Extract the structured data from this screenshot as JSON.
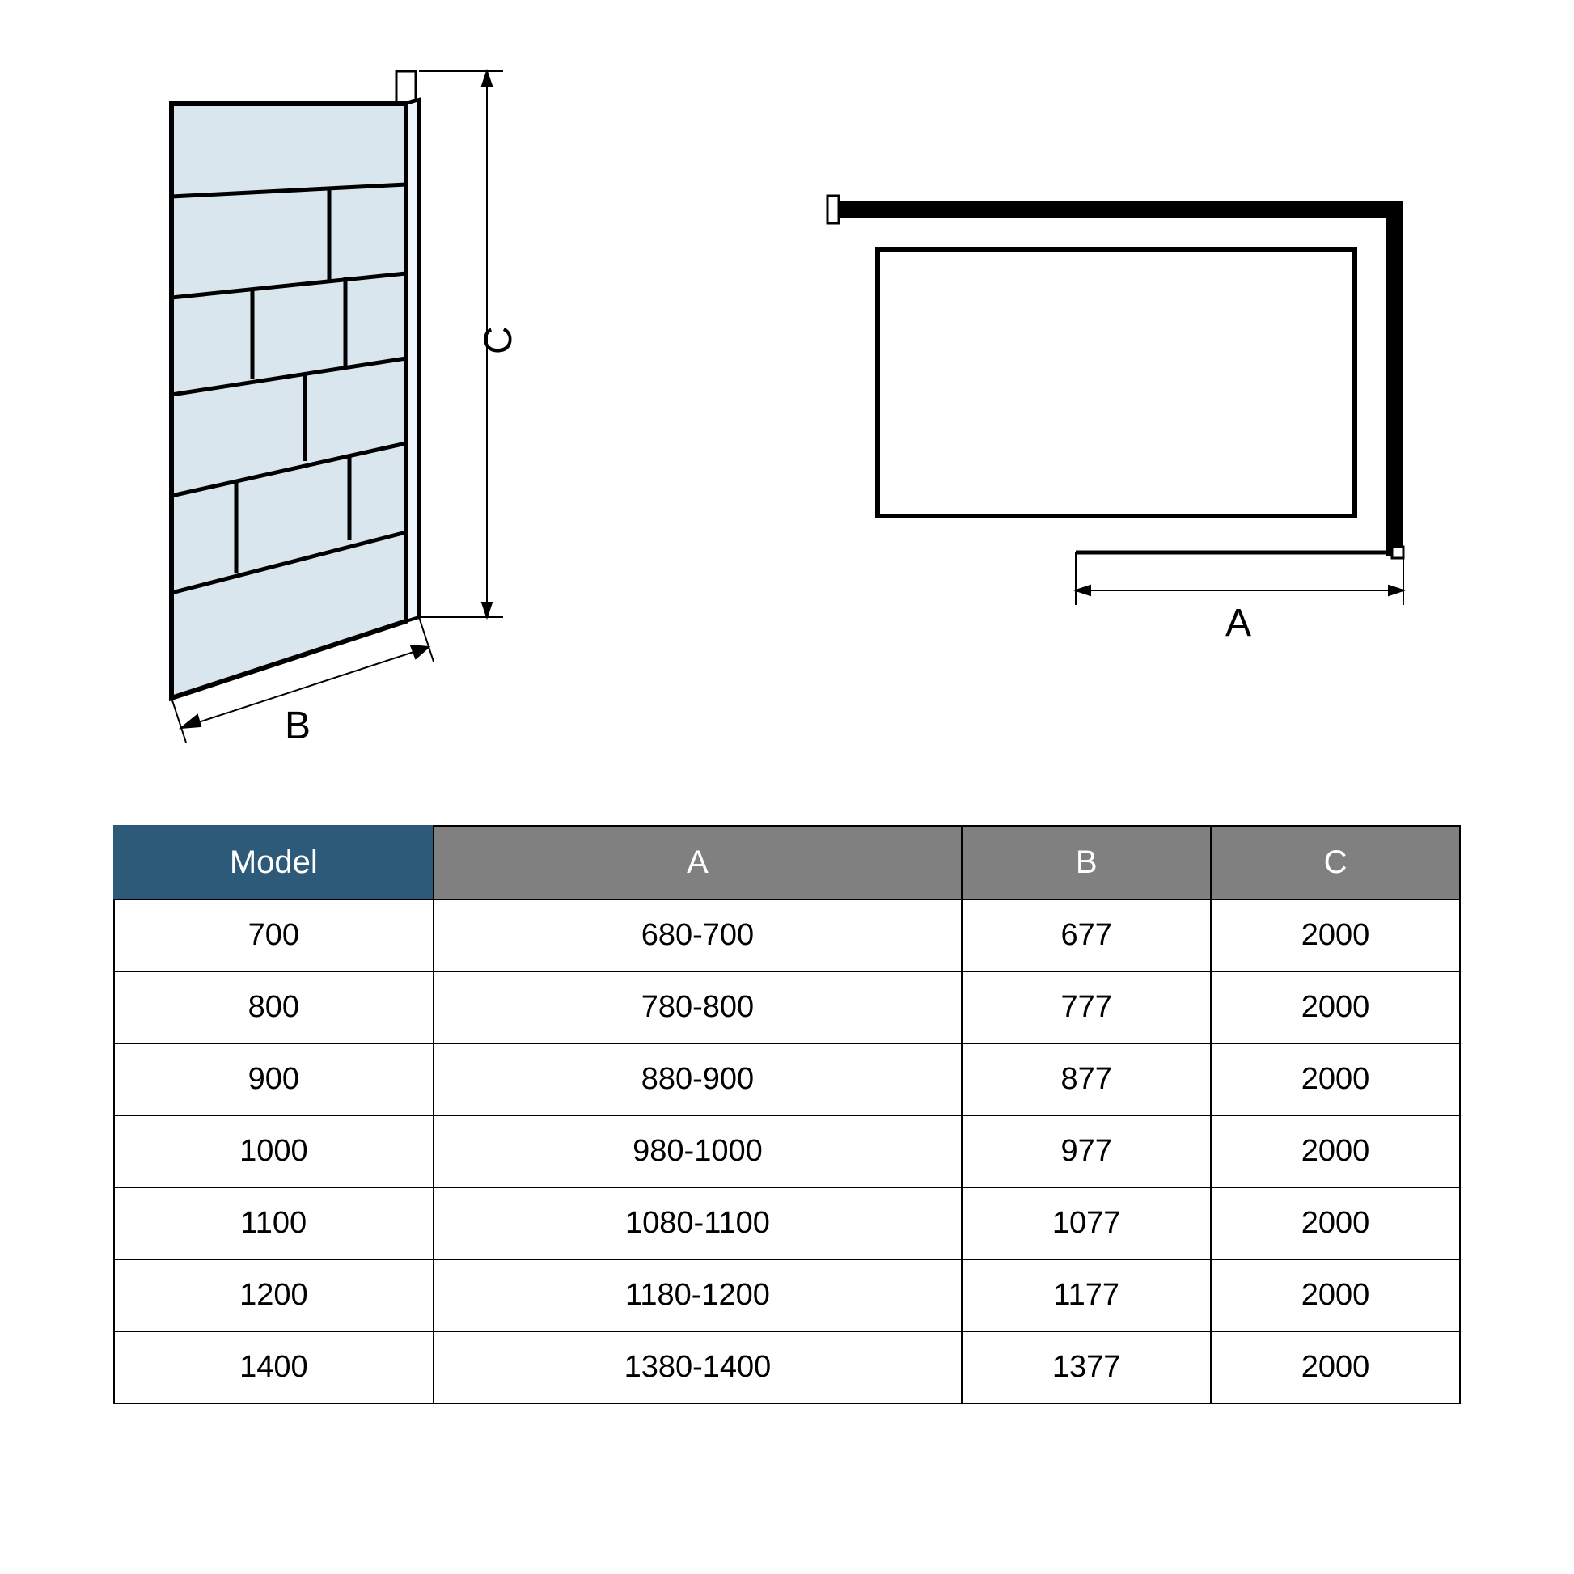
{
  "diagram": {
    "label_A": "A",
    "label_B": "B",
    "label_C": "C",
    "panel_fill": "#d9e6ed",
    "panel_stroke": "#000000",
    "stroke_width": 3,
    "dim_line_color": "#000000",
    "top_view_border": "#000000",
    "top_view_inner_border": "#000000"
  },
  "table": {
    "header_model_bg": "#2d5a78",
    "header_dim_bg": "#808080",
    "header_text_color": "#ffffff",
    "cell_text_color": "#000000",
    "border_color": "#000000",
    "columns": [
      "Model",
      "A",
      "B",
      "C"
    ],
    "rows": [
      [
        "700",
        "680-700",
        "677",
        "2000"
      ],
      [
        "800",
        "780-800",
        "777",
        "2000"
      ],
      [
        "900",
        "880-900",
        "877",
        "2000"
      ],
      [
        "1000",
        "980-1000",
        "977",
        "2000"
      ],
      [
        "1100",
        "1080-1100",
        "1077",
        "2000"
      ],
      [
        "1200",
        "1180-1200",
        "1177",
        "2000"
      ],
      [
        "1400",
        "1380-1400",
        "1377",
        "2000"
      ]
    ]
  }
}
